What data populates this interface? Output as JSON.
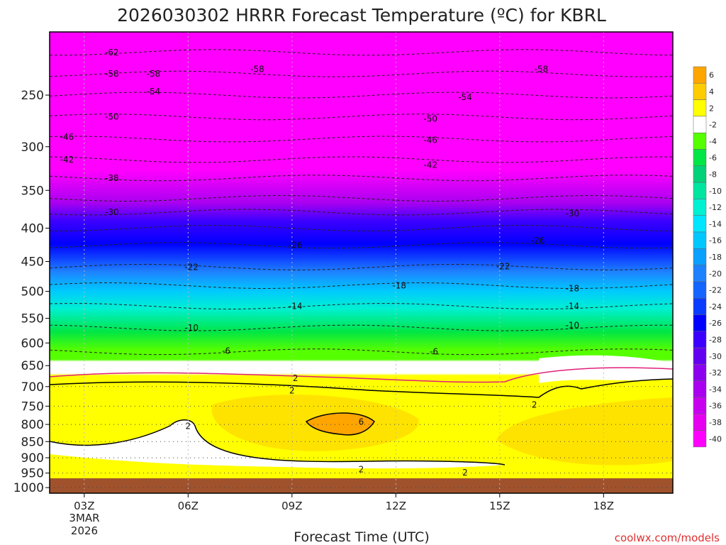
{
  "chart_data": {
    "type": "heatmap",
    "title": "2026030302 HRRR Forecast Temperature (ºC) for KBRL",
    "xlabel": "Forecast Time (UTC)",
    "ylabel": "",
    "x_ticks": [
      "03Z",
      "06Z",
      "09Z",
      "12Z",
      "15Z",
      "18Z"
    ],
    "x_tick_hours": [
      3,
      6,
      9,
      12,
      15,
      18
    ],
    "x_range_hours": [
      2,
      20
    ],
    "x_date_line1": "3MAR",
    "x_date_line2": "2026",
    "y_ticks": [
      250,
      300,
      350,
      400,
      450,
      500,
      550,
      600,
      650,
      700,
      750,
      800,
      850,
      900,
      950,
      1000
    ],
    "y_range_hPa": [
      200,
      1020
    ],
    "colorbar": {
      "levels": [
        6,
        4,
        2,
        -2,
        -4,
        -6,
        -8,
        -10,
        -12,
        -14,
        -16,
        -18,
        -20,
        -22,
        -24,
        -26,
        -28,
        -30,
        -32,
        -34,
        -36,
        -38,
        -40
      ],
      "colors": [
        "#ffa500",
        "#ffcc00",
        "#ffff00",
        "#ffffff",
        "#55ff00",
        "#00e646",
        "#00d27a",
        "#00e6a0",
        "#00f0d2",
        "#00e6ff",
        "#00c8ff",
        "#0aa0ff",
        "#1e82ff",
        "#1464ff",
        "#0a3cff",
        "#0000ff",
        "#3c00ff",
        "#6400f0",
        "#8c00f0",
        "#aa00f0",
        "#c800f0",
        "#e600f0",
        "#ff00ff"
      ]
    },
    "contour_labels": [
      {
        "t": 3.8,
        "p": 215,
        "v": "-62"
      },
      {
        "t": 3.8,
        "p": 232,
        "v": "-58"
      },
      {
        "t": 5.0,
        "p": 232,
        "v": "-58"
      },
      {
        "t": 8.0,
        "p": 228,
        "v": "-58"
      },
      {
        "t": 16.2,
        "p": 228,
        "v": "-58"
      },
      {
        "t": 5.0,
        "p": 247,
        "v": "-54"
      },
      {
        "t": 14.0,
        "p": 252,
        "v": "-54"
      },
      {
        "t": 3.8,
        "p": 270,
        "v": "-50"
      },
      {
        "t": 13.0,
        "p": 272,
        "v": "-50"
      },
      {
        "t": 2.5,
        "p": 290,
        "v": "-46"
      },
      {
        "t": 13.0,
        "p": 293,
        "v": "-46"
      },
      {
        "t": 2.5,
        "p": 314,
        "v": "-42"
      },
      {
        "t": 13.0,
        "p": 320,
        "v": "-42"
      },
      {
        "t": 3.8,
        "p": 335,
        "v": "-38"
      },
      {
        "t": 3.8,
        "p": 378,
        "v": "-30"
      },
      {
        "t": 17.1,
        "p": 380,
        "v": "-30"
      },
      {
        "t": 9.1,
        "p": 425,
        "v": "-26"
      },
      {
        "t": 16.1,
        "p": 418,
        "v": "-26"
      },
      {
        "t": 6.1,
        "p": 459,
        "v": "-22"
      },
      {
        "t": 15.1,
        "p": 458,
        "v": "-22"
      },
      {
        "t": 12.1,
        "p": 490,
        "v": "-18"
      },
      {
        "t": 17.1,
        "p": 495,
        "v": "-18"
      },
      {
        "t": 9.1,
        "p": 527,
        "v": "-14"
      },
      {
        "t": 17.1,
        "p": 527,
        "v": "-14"
      },
      {
        "t": 6.1,
        "p": 569,
        "v": "-10"
      },
      {
        "t": 17.1,
        "p": 564,
        "v": "-10"
      },
      {
        "t": 7.1,
        "p": 617,
        "v": "-6"
      },
      {
        "t": 13.1,
        "p": 619,
        "v": "-6"
      },
      {
        "t": 9.1,
        "p": 680,
        "v": "2"
      },
      {
        "t": 9.0,
        "p": 710,
        "v": "2"
      },
      {
        "t": 16.0,
        "p": 747,
        "v": "2"
      },
      {
        "t": 6.0,
        "p": 805,
        "v": "2"
      },
      {
        "t": 11.0,
        "p": 793,
        "v": "6"
      },
      {
        "t": 11.0,
        "p": 938,
        "v": "2"
      },
      {
        "t": 14.0,
        "p": 948,
        "v": "2"
      }
    ]
  },
  "watermark": "coolwx.com/models"
}
